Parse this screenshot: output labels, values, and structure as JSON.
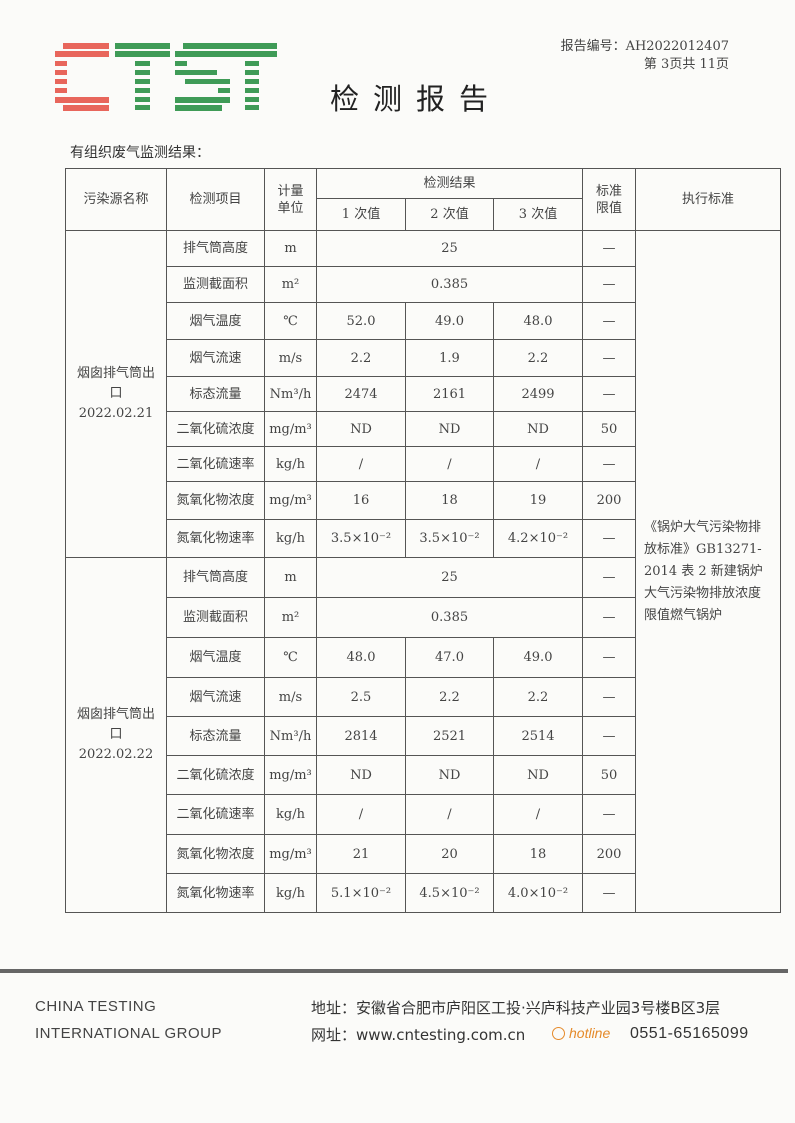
{
  "header": {
    "logo_text": "CTST",
    "report_no": "报告编号：AH2022012407",
    "page": "第 3页共 11页",
    "title": "检测报告",
    "section": "有组织废气监测结果："
  },
  "colors": {
    "logo_red": "#e8665c",
    "logo_green": "#3f9b57",
    "hotline": "#e58a2a"
  },
  "table": {
    "headers": {
      "source": "污染源名称",
      "item": "检测项目",
      "unit": "计量单位",
      "results": "检测结果",
      "r1": "1 次值",
      "r2": "2 次值",
      "r3": "3 次值",
      "limit": "标准限值",
      "standard": "执行标准"
    },
    "standard_text": "《锅炉大气污染物排放标准》GB13271-2014 表 2 新建锅炉大气污染物排放浓度限值燃气锅炉",
    "groups": [
      {
        "source": "烟囱排气筒出口 2022.02.21",
        "rows": [
          {
            "item": "排气筒高度",
            "unit": "m",
            "merged": "25",
            "limit": "—"
          },
          {
            "item": "监测截面积",
            "unit": "m²",
            "merged": "0.385",
            "limit": "—"
          },
          {
            "item": "烟气温度",
            "unit": "℃",
            "v": [
              "52.0",
              "49.0",
              "48.0"
            ],
            "limit": "—"
          },
          {
            "item": "烟气流速",
            "unit": "m/s",
            "v": [
              "2.2",
              "1.9",
              "2.2"
            ],
            "limit": "—"
          },
          {
            "item": "标态流量",
            "unit": "Nm³/h",
            "v": [
              "2474",
              "2161",
              "2499"
            ],
            "limit": "—"
          },
          {
            "item": "二氧化硫浓度",
            "unit": "mg/m³",
            "v": [
              "ND",
              "ND",
              "ND"
            ],
            "limit": "50"
          },
          {
            "item": "二氧化硫速率",
            "unit": "kg/h",
            "v": [
              "/",
              "/",
              "/"
            ],
            "limit": "—"
          },
          {
            "item": "氮氧化物浓度",
            "unit": "mg/m³",
            "v": [
              "16",
              "18",
              "19"
            ],
            "limit": "200"
          },
          {
            "item": "氮氧化物速率",
            "unit": "kg/h",
            "v": [
              "3.5×10⁻²",
              "3.5×10⁻²",
              "4.2×10⁻²"
            ],
            "limit": "—"
          }
        ]
      },
      {
        "source": "烟囱排气筒出口 2022.02.22",
        "rows": [
          {
            "item": "排气筒高度",
            "unit": "m",
            "merged": "25",
            "limit": "—"
          },
          {
            "item": "监测截面积",
            "unit": "m²",
            "merged": "0.385",
            "limit": "—"
          },
          {
            "item": "烟气温度",
            "unit": "℃",
            "v": [
              "48.0",
              "47.0",
              "49.0"
            ],
            "limit": "—"
          },
          {
            "item": "烟气流速",
            "unit": "m/s",
            "v": [
              "2.5",
              "2.2",
              "2.2"
            ],
            "limit": "—"
          },
          {
            "item": "标态流量",
            "unit": "Nm³/h",
            "v": [
              "2814",
              "2521",
              "2514"
            ],
            "limit": "—"
          },
          {
            "item": "二氧化硫浓度",
            "unit": "mg/m³",
            "v": [
              "ND",
              "ND",
              "ND"
            ],
            "limit": "50"
          },
          {
            "item": "二氧化硫速率",
            "unit": "kg/h",
            "v": [
              "/",
              "/",
              "/"
            ],
            "limit": "—"
          },
          {
            "item": "氮氧化物浓度",
            "unit": "mg/m³",
            "v": [
              "21",
              "20",
              "18"
            ],
            "limit": "200"
          },
          {
            "item": "氮氧化物速率",
            "unit": "kg/h",
            "v": [
              "5.1×10⁻²",
              "4.5×10⁻²",
              "4.0×10⁻²"
            ],
            "limit": "—"
          }
        ]
      }
    ]
  },
  "footer": {
    "en_line1": "CHINA TESTING",
    "en_line2": "INTERNATIONAL GROUP",
    "address": "地址：安徽省合肥市庐阳区工投·兴庐科技产业园3号楼B区3层",
    "website": "网址：www.cntesting.com.cn",
    "hotline_label": "hotline",
    "phone": "0551-65165099"
  }
}
